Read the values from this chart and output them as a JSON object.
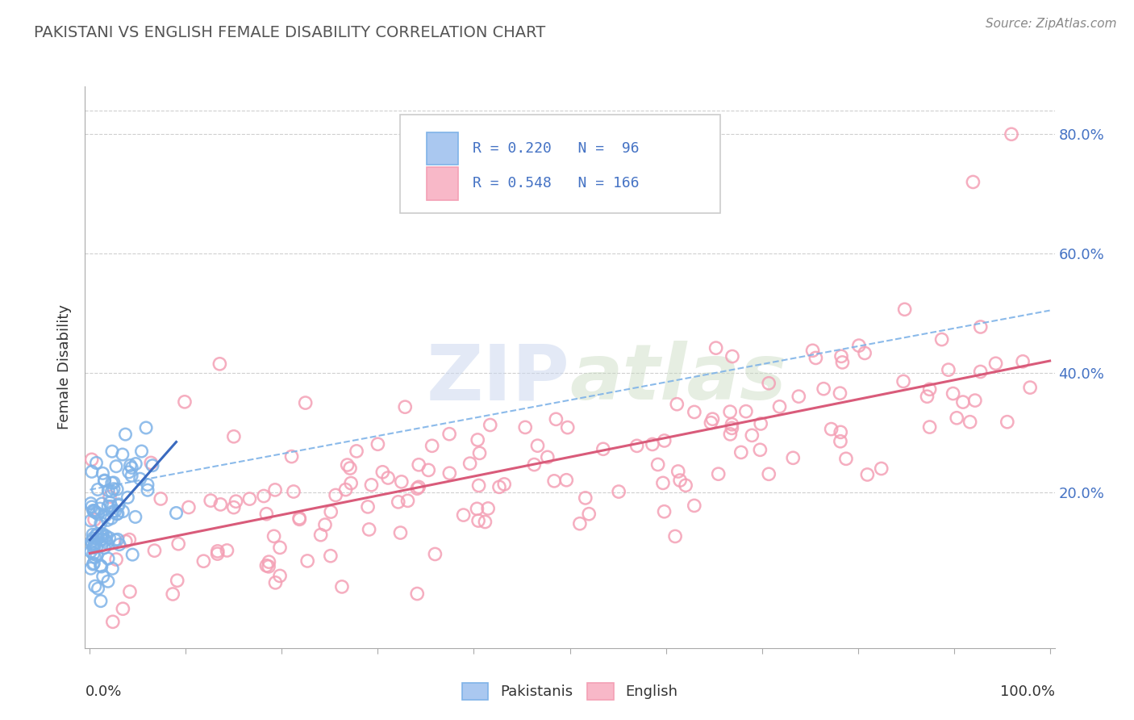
{
  "title": "PAKISTANI VS ENGLISH FEMALE DISABILITY CORRELATION CHART",
  "source": "Source: ZipAtlas.com",
  "ylabel": "Female Disability",
  "pakistani_R": 0.22,
  "pakistani_N": 96,
  "english_R": 0.548,
  "english_N": 166,
  "pakistani_color": "#7fb3e8",
  "english_color": "#f4a0b5",
  "pakistani_line_color": "#3a6abf",
  "english_line_color": "#d95b7a",
  "dashed_line_color": "#7fb3e8",
  "legend_box_color_pakistani": "#aac8f0",
  "legend_box_color_english": "#f8b8c8",
  "background_color": "#ffffff",
  "grid_color": "#bbbbbb",
  "ytick_color": "#4472c4",
  "title_color": "#555555",
  "source_color": "#888888",
  "ylabel_color": "#333333"
}
